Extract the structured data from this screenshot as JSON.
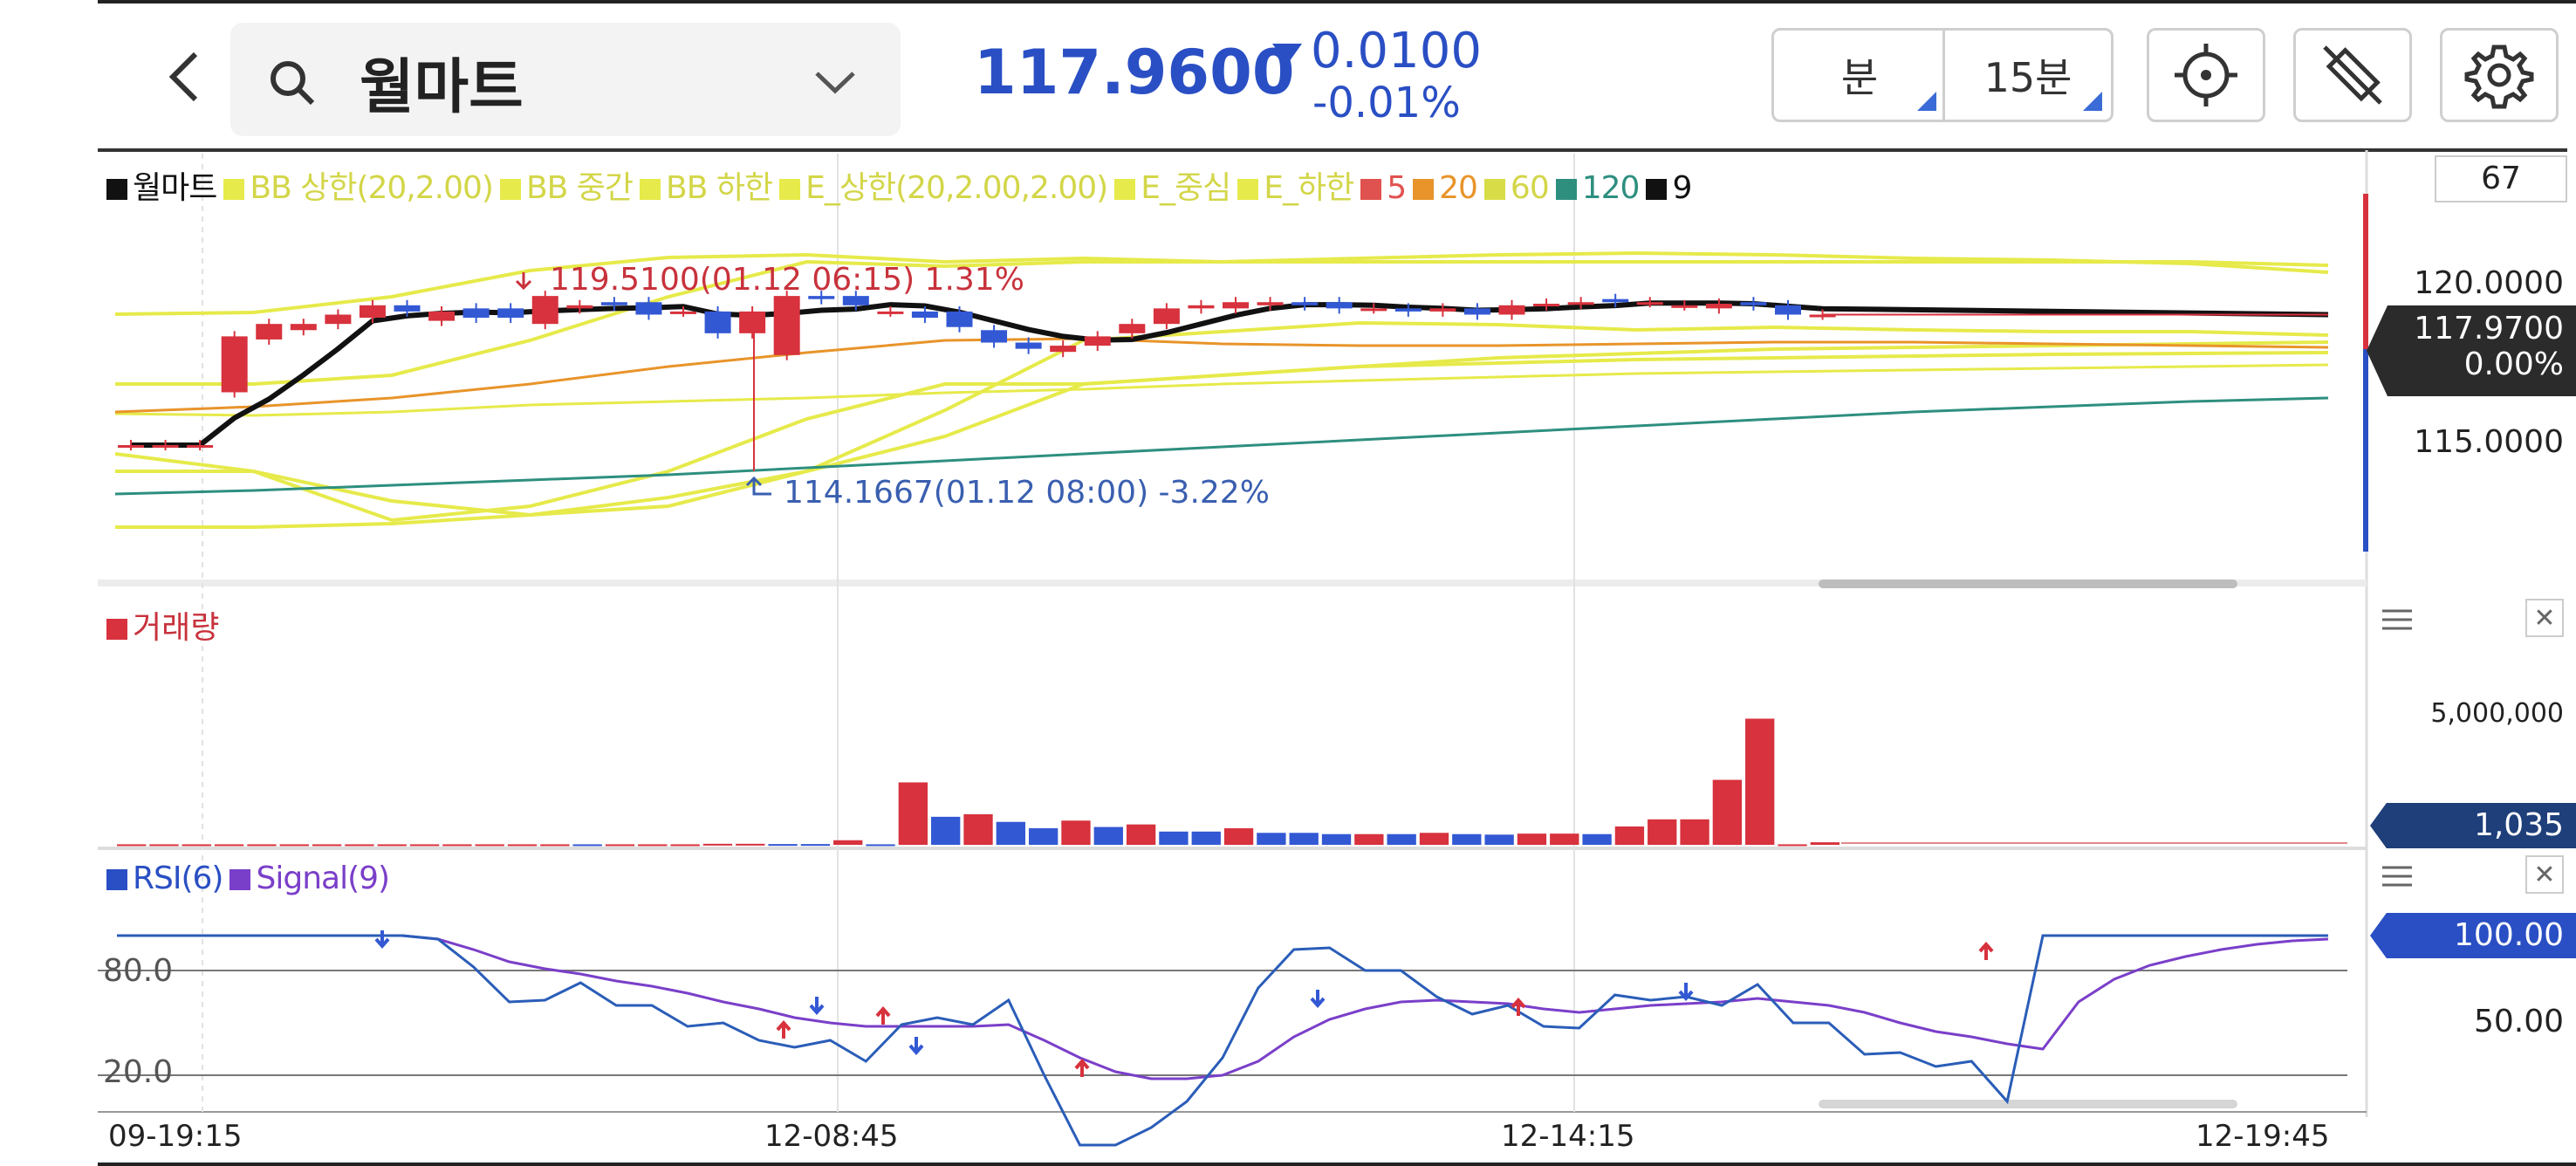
{
  "header": {
    "back_icon": "chevron-left-icon",
    "search_icon": "search-icon",
    "stock_name": "월마트",
    "dropdown_icon": "chevron-down-icon",
    "price": "117.9600",
    "change_icon": "down-triangle-icon",
    "change": "0.0100",
    "change_pct": "-0.01%",
    "unit_button": "분",
    "interval_button": "15분",
    "crosshair_icon": "crosshair-icon",
    "draw_icon": "drawing-tools-icon",
    "settings_icon": "gear-icon"
  },
  "colors": {
    "accent": "#2a4fc4",
    "up": "#d7323d",
    "down": "#3358d4",
    "bb": "#e6ea4a",
    "ma20": "#e8942a",
    "ma120": "#2e8f7f"
  },
  "price_panel": {
    "legend": [
      {
        "label": "월마트",
        "color": "#111111"
      },
      {
        "label": "BB 상한(20,2.00)",
        "color": "#e6ea4a"
      },
      {
        "label": "BB 중간",
        "color": "#e6ea4a"
      },
      {
        "label": "BB 하한",
        "color": "#e6ea4a"
      },
      {
        "label": "E_상한(20,2.00,2.00)",
        "color": "#e6ea4a"
      },
      {
        "label": "E_중심",
        "color": "#e6ea4a"
      },
      {
        "label": "E_하한",
        "color": "#e6ea4a"
      },
      {
        "label": "5",
        "color": "#e0524f"
      },
      {
        "label": "20",
        "color": "#e8942a"
      },
      {
        "label": "60",
        "color": "#d8dd47"
      },
      {
        "label": "120",
        "color": "#2e8f7f"
      },
      {
        "label": "9",
        "color": "#111111"
      }
    ],
    "count_box": "67",
    "axis_high": "120.0000",
    "axis_low": "115.0000",
    "current_price": "117.9700",
    "current_pct": "0.00%",
    "high_note": "119.5100(01.12 06:15) 1.31%",
    "low_note": "114.1667(01.12 08:00) -3.22%"
  },
  "volume_panel": {
    "title": "거래량",
    "axis_label": "5,000,000",
    "current": "1,035",
    "menu_icon": "hamburger-icon",
    "close_icon": "close-icon"
  },
  "rsi_panel": {
    "legend": [
      {
        "label": "RSI(6)",
        "color": "#2a4fc4"
      },
      {
        "label": "Signal(9)",
        "color": "#7a3fc9"
      }
    ],
    "level_high": "80.0",
    "level_low": "20.0",
    "current": "100.00",
    "axis_mid": "50.00",
    "menu_icon": "hamburger-icon",
    "close_icon": "close-icon"
  },
  "x_axis": [
    "09-19:15",
    "12-08:45",
    "12-14:15",
    "12-19:45"
  ],
  "chart_data": {
    "type": "candlestick",
    "candles": [
      {
        "o": 115.0,
        "c": 115.0
      },
      {
        "o": 115.0,
        "c": 115.0
      },
      {
        "o": 115.0,
        "c": 115.0
      },
      {
        "o": 116.7,
        "c": 118.5
      },
      {
        "o": 118.4,
        "c": 118.9
      },
      {
        "o": 118.7,
        "c": 118.9
      },
      {
        "o": 118.9,
        "c": 119.2
      },
      {
        "o": 119.1,
        "c": 119.5
      },
      {
        "o": 119.5,
        "c": 119.3
      },
      {
        "o": 119.0,
        "c": 119.3
      },
      {
        "o": 119.4,
        "c": 119.1
      },
      {
        "o": 119.4,
        "c": 119.1
      },
      {
        "o": 118.9,
        "c": 119.8
      },
      {
        "o": 119.4,
        "c": 119.5
      },
      {
        "o": 119.6,
        "c": 119.5
      },
      {
        "o": 119.6,
        "c": 119.2
      },
      {
        "o": 119.3,
        "c": 119.3
      },
      {
        "o": 119.3,
        "c": 118.6
      },
      {
        "o": 118.6,
        "c": 119.3
      },
      {
        "o": 117.9,
        "c": 119.8
      },
      {
        "o": 119.8,
        "c": 119.7
      },
      {
        "o": 119.8,
        "c": 119.5
      },
      {
        "o": 119.3,
        "c": 119.3
      },
      {
        "o": 119.3,
        "c": 119.1
      },
      {
        "o": 119.3,
        "c": 118.8
      },
      {
        "o": 118.7,
        "c": 118.3
      },
      {
        "o": 118.3,
        "c": 118.1
      },
      {
        "o": 118.0,
        "c": 118.2
      },
      {
        "o": 118.2,
        "c": 118.5
      },
      {
        "o": 118.6,
        "c": 118.9
      },
      {
        "o": 118.9,
        "c": 119.4
      },
      {
        "o": 119.4,
        "c": 119.5
      },
      {
        "o": 119.4,
        "c": 119.6
      },
      {
        "o": 119.5,
        "c": 119.6
      },
      {
        "o": 119.6,
        "c": 119.5
      },
      {
        "o": 119.6,
        "c": 119.4
      },
      {
        "o": 119.4,
        "c": 119.4
      },
      {
        "o": 119.4,
        "c": 119.3
      },
      {
        "o": 119.3,
        "c": 119.4
      },
      {
        "o": 119.4,
        "c": 119.2
      },
      {
        "o": 119.2,
        "c": 119.5
      },
      {
        "o": 119.5,
        "c": 119.55
      },
      {
        "o": 119.55,
        "c": 119.6
      },
      {
        "o": 119.7,
        "c": 119.6
      },
      {
        "o": 119.6,
        "c": 119.6
      },
      {
        "o": 119.5,
        "c": 119.5
      },
      {
        "o": 119.4,
        "c": 119.55
      },
      {
        "o": 119.6,
        "c": 119.5
      },
      {
        "o": 119.5,
        "c": 119.2
      },
      {
        "o": 119.2,
        "c": 119.2
      }
    ],
    "volume": [
      {
        "v": 20000,
        "up": true
      },
      {
        "v": 20000,
        "up": true
      },
      {
        "v": 20000,
        "up": true
      },
      {
        "v": 20000,
        "up": true
      },
      {
        "v": 20000,
        "up": true
      },
      {
        "v": 20000,
        "up": true
      },
      {
        "v": 20000,
        "up": true
      },
      {
        "v": 20000,
        "up": true
      },
      {
        "v": 20000,
        "up": true
      },
      {
        "v": 20000,
        "up": true
      },
      {
        "v": 20000,
        "up": true
      },
      {
        "v": 20000,
        "up": true
      },
      {
        "v": 20000,
        "up": true
      },
      {
        "v": 20000,
        "up": true
      },
      {
        "v": 20000,
        "up": false
      },
      {
        "v": 20000,
        "up": true
      },
      {
        "v": 20000,
        "up": true
      },
      {
        "v": 20000,
        "up": true
      },
      {
        "v": 40000,
        "up": true
      },
      {
        "v": 40000,
        "up": true
      },
      {
        "v": 30000,
        "up": false
      },
      {
        "v": 30000,
        "up": false
      },
      {
        "v": 180000,
        "up": true
      },
      {
        "v": 20000,
        "up": false
      },
      {
        "v": 2450000,
        "up": true
      },
      {
        "v": 1100000,
        "up": false
      },
      {
        "v": 1200000,
        "up": true
      },
      {
        "v": 900000,
        "up": false
      },
      {
        "v": 650000,
        "up": false
      },
      {
        "v": 950000,
        "up": true
      },
      {
        "v": 700000,
        "up": false
      },
      {
        "v": 800000,
        "up": true
      },
      {
        "v": 520000,
        "up": false
      },
      {
        "v": 520000,
        "up": false
      },
      {
        "v": 650000,
        "up": true
      },
      {
        "v": 470000,
        "up": false
      },
      {
        "v": 470000,
        "up": false
      },
      {
        "v": 420000,
        "up": false
      },
      {
        "v": 420000,
        "up": true
      },
      {
        "v": 420000,
        "up": false
      },
      {
        "v": 470000,
        "up": true
      },
      {
        "v": 420000,
        "up": false
      },
      {
        "v": 400000,
        "up": false
      },
      {
        "v": 440000,
        "up": true
      },
      {
        "v": 440000,
        "up": true
      },
      {
        "v": 420000,
        "up": false
      },
      {
        "v": 720000,
        "up": true
      },
      {
        "v": 1000000,
        "up": true
      },
      {
        "v": 1000000,
        "up": true
      },
      {
        "v": 2550000,
        "up": true
      },
      {
        "v": 4950000,
        "up": true
      },
      {
        "v": 20000,
        "up": true
      },
      {
        "v": 100000,
        "up": true
      }
    ],
    "rsi": [
      100,
      100,
      100,
      100,
      100,
      100,
      100,
      100,
      100,
      98,
      82,
      62,
      63,
      73,
      60,
      60,
      48,
      50,
      40,
      36,
      40,
      28,
      49,
      53,
      49,
      63,
      20,
      -20,
      -20,
      -10,
      5,
      30,
      70,
      92,
      93,
      80,
      80,
      65,
      55,
      60,
      48,
      47,
      66,
      63,
      65,
      60,
      72,
      50,
      50,
      32,
      33,
      25,
      28,
      5,
      100,
      100,
      100,
      100,
      100,
      100,
      100,
      100,
      100
    ],
    "signal": [
      100,
      100,
      100,
      100,
      100,
      100,
      100,
      100,
      100,
      98,
      92,
      85,
      81,
      78,
      74,
      71,
      67,
      62,
      58,
      53,
      50,
      48,
      48,
      48,
      48,
      49,
      40,
      30,
      22,
      18,
      18,
      20,
      28,
      42,
      52,
      58,
      62,
      63,
      62,
      61,
      58,
      56,
      58,
      60,
      61,
      62,
      64,
      62,
      60,
      56,
      50,
      45,
      42,
      38,
      35,
      62,
      75,
      83,
      88,
      92,
      95,
      97,
      98
    ]
  }
}
